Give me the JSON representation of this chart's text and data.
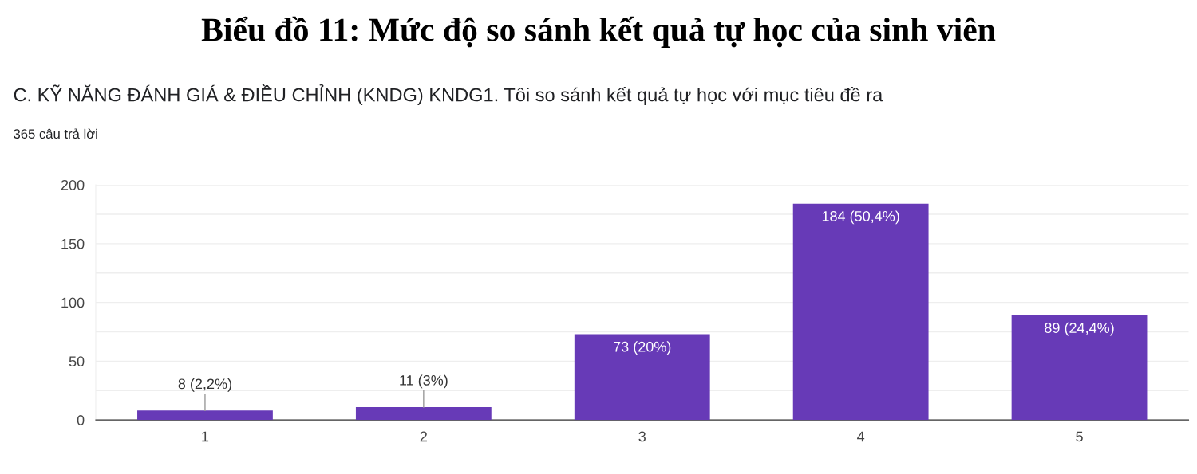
{
  "chart_data": {
    "type": "bar",
    "title": "Biểu đồ 11: Mức độ so sánh kết quả tự học của sinh viên",
    "subtitle": "C. KỸ NĂNG ĐÁNH GIÁ & ĐIỀU CHỈNH (KNDG) KNDG1. Tôi so sánh kết quả tự học với mục tiêu đề ra",
    "annotations": [
      "365 câu trả lời"
    ],
    "categories": [
      "1",
      "2",
      "3",
      "4",
      "5"
    ],
    "values": [
      8,
      11,
      73,
      184,
      89
    ],
    "value_labels": [
      "8 (2,2%)",
      "11 (3%)",
      "73 (20%)",
      "184 (50,4%)",
      "89 (24,4%)"
    ],
    "color": "#673ab7",
    "ylim": [
      0,
      200
    ],
    "yticks": [
      0,
      {
        "value": 25,
        "label": null
      },
      50,
      {
        "value": 75,
        "label": null
      },
      100,
      {
        "value": 125,
        "label": null
      },
      150,
      {
        "value": 175,
        "label": null
      },
      200
    ],
    "grid": "y",
    "legend": false
  }
}
